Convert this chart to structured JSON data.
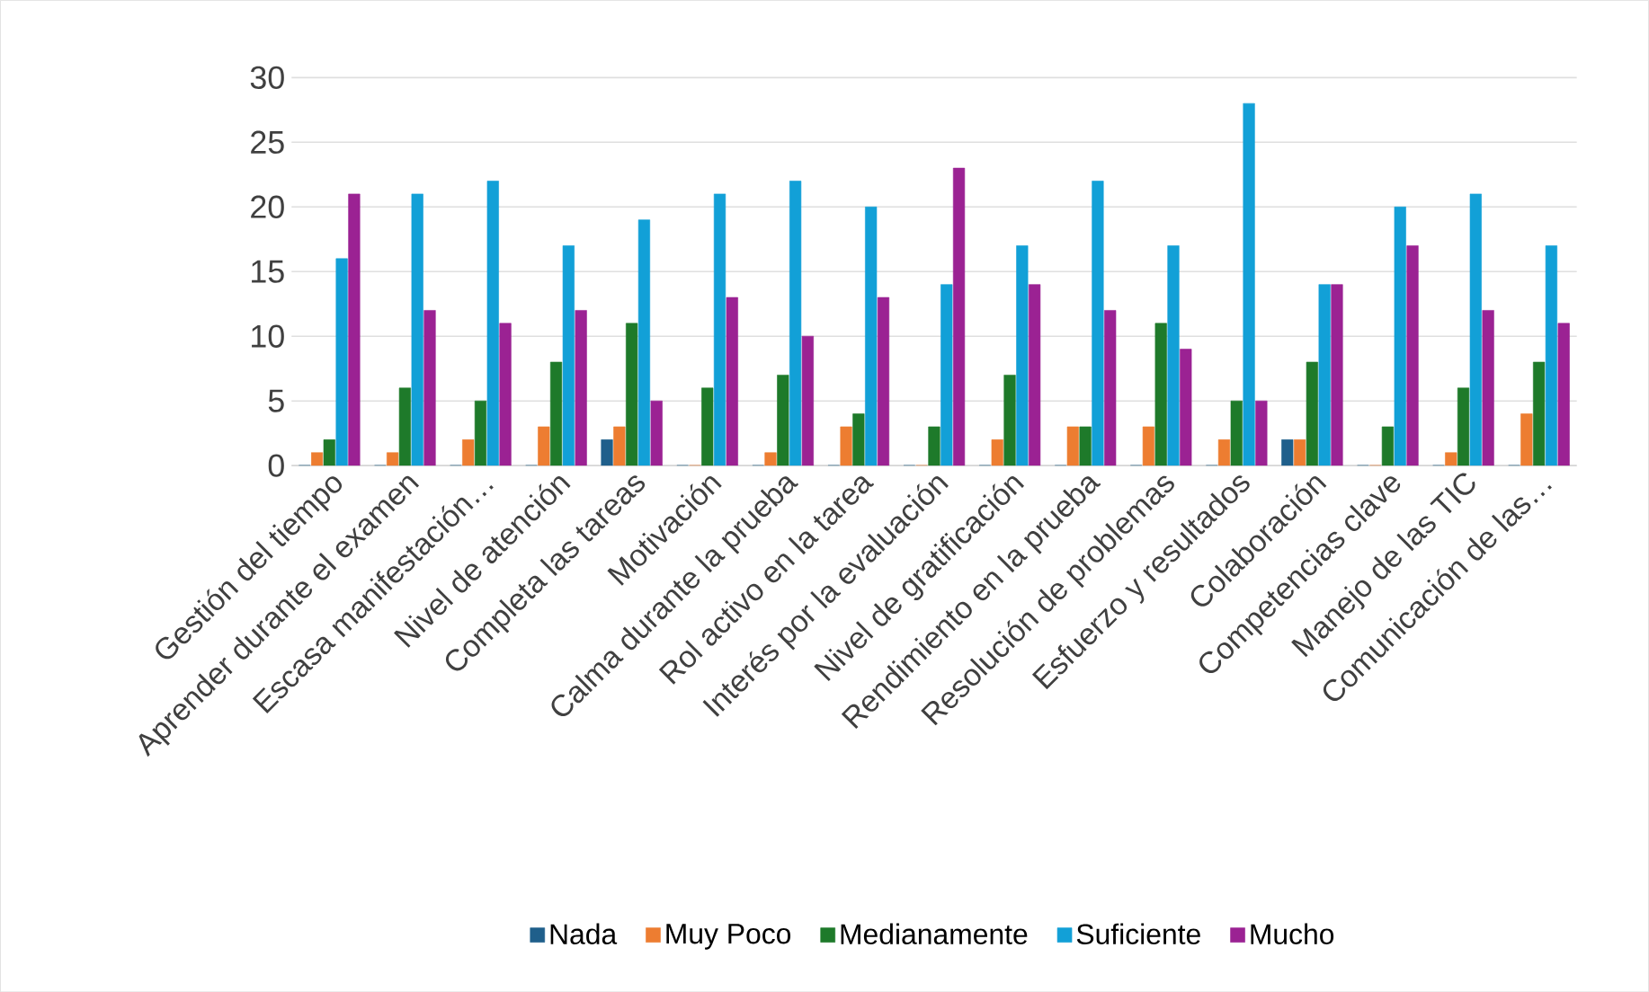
{
  "chart_data": {
    "type": "bar",
    "categories": [
      "Gestión del tiempo",
      "Aprender durante el examen",
      "Escasa manifestación…",
      "Nivel de atención",
      "Completa las tareas",
      "Motivación",
      "Calma durante la prueba",
      "Rol activo en la tarea",
      "Interés por la evaluación",
      "Nivel de gratificación",
      "Rendimiento en la prueba",
      "Resolución de problemas",
      "Esfuerzo y resultados",
      "Colaboración",
      "Competencias clave",
      "Manejo de las TIC",
      "Comunicación de las…"
    ],
    "series": [
      {
        "name": "Nada",
        "color": "#1f5f8b",
        "values": [
          0,
          0,
          0,
          0,
          2,
          0,
          0,
          0,
          0,
          0,
          0,
          0,
          0,
          2,
          0,
          0,
          0
        ]
      },
      {
        "name": "Muy Poco",
        "color": "#ed7d31",
        "values": [
          1,
          1,
          2,
          3,
          3,
          0,
          1,
          3,
          0,
          2,
          3,
          3,
          2,
          2,
          0,
          1,
          4
        ]
      },
      {
        "name": "Medianamente",
        "color": "#1e7a2a",
        "values": [
          2,
          6,
          5,
          8,
          11,
          6,
          7,
          4,
          3,
          7,
          3,
          11,
          5,
          8,
          3,
          6,
          8
        ]
      },
      {
        "name": "Suficiente",
        "color": "#12a0d7",
        "values": [
          16,
          21,
          22,
          17,
          19,
          21,
          22,
          20,
          14,
          17,
          22,
          17,
          28,
          14,
          20,
          21,
          17
        ]
      },
      {
        "name": "Mucho",
        "color": "#9b2293",
        "values": [
          21,
          12,
          11,
          12,
          5,
          13,
          10,
          13,
          23,
          14,
          12,
          9,
          5,
          14,
          17,
          12,
          11
        ]
      }
    ],
    "ylim": [
      0,
      30
    ],
    "yticks": [
      0,
      5,
      10,
      15,
      20,
      25,
      30
    ],
    "grid": "y",
    "legend": "bottom"
  }
}
